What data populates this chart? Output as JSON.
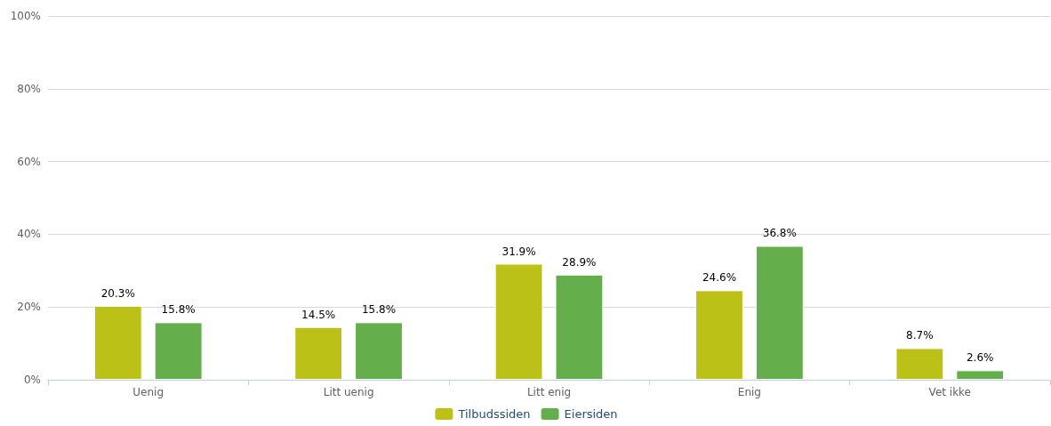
{
  "chart_data": {
    "type": "bar",
    "categories": [
      "Uenig",
      "Litt uenig",
      "Litt enig",
      "Enig",
      "Vet ikke"
    ],
    "series": [
      {
        "name": "Tilbudssiden",
        "color": "#bbc116",
        "values": [
          20.3,
          14.5,
          31.9,
          24.6,
          8.7
        ],
        "value_labels": [
          "20.3%",
          "14.5%",
          "31.9%",
          "24.6%",
          "8.7%"
        ]
      },
      {
        "name": "Eiersiden",
        "color": "#64ae4b",
        "values": [
          15.8,
          15.8,
          28.9,
          36.8,
          2.6
        ],
        "value_labels": [
          "15.8%",
          "15.8%",
          "28.9%",
          "36.8%",
          "2.6%"
        ]
      }
    ],
    "ylim": [
      0,
      100
    ],
    "yticks": [
      {
        "value": 0,
        "label": "0%"
      },
      {
        "value": 20,
        "label": "20%"
      },
      {
        "value": 40,
        "label": "40%"
      },
      {
        "value": 60,
        "label": "60%"
      },
      {
        "value": 80,
        "label": "80%"
      },
      {
        "value": 100,
        "label": "100%"
      }
    ],
    "grid": "y",
    "legend": "bottom"
  }
}
